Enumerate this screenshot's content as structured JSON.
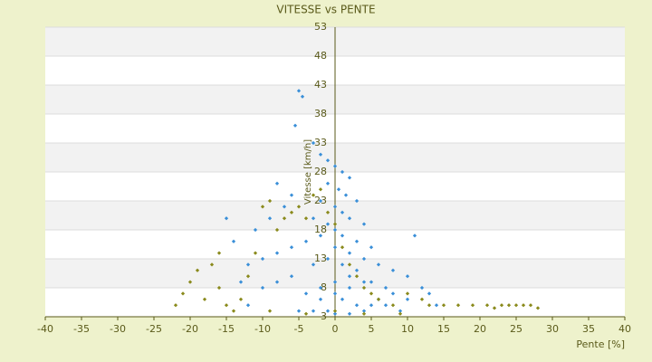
{
  "chart_data": {
    "type": "scatter",
    "title": "VITESSE vs PENTE",
    "x_label": "Pente [%]",
    "y_label": "Vitesse [km/h]",
    "xlim": [
      -40,
      40
    ],
    "xticks": [
      -40,
      -35,
      -30,
      -25,
      -20,
      -15,
      -10,
      -5,
      0,
      5,
      10,
      15,
      20,
      25,
      30,
      35,
      40
    ],
    "ylim": [
      3,
      53
    ],
    "yticks": [
      3,
      8,
      13,
      18,
      23,
      28,
      33,
      38,
      43,
      48,
      53
    ],
    "grid": true,
    "series": [
      {
        "color": "#3a8fd8",
        "x": [
          -5,
          -4.5,
          -5.5,
          -3,
          -2,
          -1,
          0,
          1,
          2,
          -1,
          0.5,
          1.5,
          3,
          -2,
          0,
          1,
          2,
          4,
          -3,
          -1,
          0,
          1,
          3,
          5,
          -2,
          -4,
          -6,
          -8,
          -10,
          -12,
          -15,
          -14,
          -11,
          -9,
          -7,
          -6,
          -8,
          0,
          2,
          4,
          6,
          8,
          10,
          11,
          12,
          13,
          2,
          0,
          -2,
          -4,
          1,
          3,
          5,
          7,
          9,
          -1,
          -3,
          -5,
          0,
          2,
          4,
          6,
          8,
          10,
          14,
          -6,
          -8,
          -10,
          -3,
          -1,
          1,
          3,
          5,
          7,
          -2,
          0,
          2,
          4,
          -12,
          -13
        ],
        "values": [
          42,
          41,
          36,
          33,
          31,
          30,
          29,
          28,
          27,
          26,
          25,
          24,
          23,
          23,
          22,
          21,
          20,
          19,
          20,
          19,
          18,
          17,
          16,
          15,
          17,
          16,
          15,
          14,
          13,
          12,
          20,
          16,
          18,
          20,
          22,
          24,
          26,
          15,
          14,
          13,
          12,
          11,
          10,
          17,
          8,
          7,
          10,
          9,
          8,
          7,
          6,
          5,
          5,
          5,
          4,
          4,
          4,
          4,
          3.5,
          3.5,
          4,
          6,
          7,
          6,
          5,
          10,
          9,
          8,
          12,
          13,
          12,
          11,
          9,
          8,
          6,
          7,
          8,
          9,
          5,
          9
        ]
      },
      {
        "color": "#8a8a1c",
        "x": [
          -22,
          -21,
          -20,
          -19,
          -18,
          -17,
          -16,
          -16,
          -15,
          -13,
          -12,
          -11,
          -10,
          -9,
          -8,
          -7,
          -6,
          -5,
          -4,
          -3,
          -2,
          -1,
          0,
          1,
          2,
          3,
          4,
          5,
          6,
          8,
          10,
          12,
          13,
          15,
          17,
          19,
          21,
          22,
          23,
          24,
          25,
          26,
          27,
          28,
          -14,
          -9,
          -4,
          0,
          4,
          9
        ],
        "values": [
          5,
          7,
          9,
          11,
          6,
          12,
          14,
          8,
          5,
          6,
          10,
          14,
          22,
          23,
          18,
          20,
          21,
          22,
          20,
          24,
          25,
          21,
          19,
          15,
          12,
          10,
          8,
          7,
          6,
          5,
          7,
          6,
          5,
          5,
          5,
          5,
          5,
          4.5,
          5,
          5,
          5,
          5,
          5,
          4.5,
          4,
          4,
          3.5,
          4,
          3.5,
          3.5
        ]
      }
    ]
  }
}
